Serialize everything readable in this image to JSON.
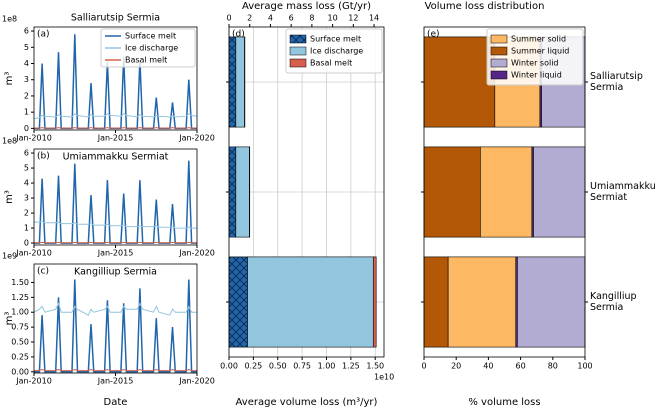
{
  "chart_data": [
    {
      "type": "line",
      "title": "Salliarutsip Sermia",
      "panel_label": "(a)",
      "offset_label": "1e8",
      "ylabel": "m³",
      "x": [
        "2010-01",
        "2010-05",
        "2010-07",
        "2010-09",
        "2011-05",
        "2011-07",
        "2011-09",
        "2012-05",
        "2012-07",
        "2012-09",
        "2013-05",
        "2013-07",
        "2013-09",
        "2014-05",
        "2014-07",
        "2014-09",
        "2015-05",
        "2015-07",
        "2015-09",
        "2016-05",
        "2016-07",
        "2016-09",
        "2017-05",
        "2017-07",
        "2017-09",
        "2018-05",
        "2018-07",
        "2018-09",
        "2019-05",
        "2019-07",
        "2019-09",
        "2020-01"
      ],
      "series": [
        {
          "name": "Surface melt",
          "color": "#2166ac",
          "values": [
            0,
            0,
            4.0,
            0,
            0,
            4.7,
            0,
            0,
            5.8,
            0,
            0,
            2.8,
            0,
            0,
            4.1,
            0,
            0,
            4.4,
            0,
            0,
            4.2,
            0,
            0,
            1.9,
            0,
            0,
            1.6,
            0,
            0,
            3.0,
            0,
            0
          ]
        },
        {
          "name": "Ice discharge",
          "color": "#92c5de",
          "values": [
            0.6,
            0.65,
            0.8,
            0.75,
            0.7,
            0.85,
            0.75,
            0.7,
            0.9,
            0.8,
            0.7,
            0.85,
            0.75,
            0.75,
            0.9,
            0.8,
            0.75,
            0.9,
            0.8,
            0.7,
            0.85,
            0.75,
            0.7,
            0.8,
            0.75,
            0.7,
            0.8,
            0.7,
            0.75,
            0.9,
            0.8,
            0.75
          ]
        },
        {
          "name": "Basal melt",
          "color": "#d6604d",
          "values": [
            0.02,
            0.02,
            0.05,
            0.02,
            0.02,
            0.05,
            0.02,
            0.02,
            0.05,
            0.02,
            0.02,
            0.05,
            0.02,
            0.02,
            0.05,
            0.02,
            0.02,
            0.05,
            0.02,
            0.02,
            0.05,
            0.02,
            0.02,
            0.05,
            0.02,
            0.02,
            0.05,
            0.02,
            0.02,
            0.05,
            0.02,
            0.02
          ]
        }
      ],
      "xlim": [
        "2010-01",
        "2020-01"
      ],
      "xticks": [
        {
          "value": "2010-01",
          "label": "Jan-2010"
        },
        {
          "value": "2015-01",
          "label": "Jan-2015"
        },
        {
          "value": "2020-01",
          "label": "Jan-2020"
        }
      ],
      "ylim": [
        -0.1,
        6.25
      ],
      "yticks": [
        0,
        1,
        2,
        3,
        4,
        5,
        6
      ],
      "legend": "upper right"
    },
    {
      "type": "line",
      "title": "Umiammakku Sermiat",
      "panel_label": "(b)",
      "offset_label": "1e8",
      "ylabel": "m³",
      "x": [
        "2010-01",
        "2010-05",
        "2010-07",
        "2010-09",
        "2011-05",
        "2011-07",
        "2011-09",
        "2012-05",
        "2012-07",
        "2012-09",
        "2013-05",
        "2013-07",
        "2013-09",
        "2014-05",
        "2014-07",
        "2014-09",
        "2015-05",
        "2015-07",
        "2015-09",
        "2016-05",
        "2016-07",
        "2016-09",
        "2017-05",
        "2017-07",
        "2017-09",
        "2018-05",
        "2018-07",
        "2018-09",
        "2019-05",
        "2019-07",
        "2019-09",
        "2020-01"
      ],
      "series": [
        {
          "name": "Surface melt",
          "color": "#2166ac",
          "values": [
            0,
            0,
            4.3,
            0,
            0,
            4.5,
            0,
            0,
            5.3,
            0,
            0,
            3.2,
            0,
            0,
            4.2,
            0,
            0,
            3.3,
            0,
            0,
            4.2,
            0,
            0,
            2.9,
            0,
            0,
            2.6,
            0,
            0,
            5.5,
            0,
            0
          ]
        },
        {
          "name": "Ice discharge",
          "color": "#92c5de",
          "values": [
            1.4,
            1.4,
            1.45,
            1.35,
            1.35,
            1.4,
            1.3,
            1.3,
            1.35,
            1.25,
            1.25,
            1.3,
            1.2,
            1.2,
            1.25,
            1.15,
            1.15,
            1.2,
            1.1,
            1.1,
            1.15,
            1.1,
            1.1,
            1.15,
            1.05,
            1.05,
            1.1,
            1.0,
            1.0,
            1.05,
            1.0,
            1.0
          ]
        },
        {
          "name": "Basal melt",
          "color": "#d6604d",
          "values": [
            0.02,
            0.02,
            0.04,
            0.02,
            0.02,
            0.04,
            0.02,
            0.02,
            0.04,
            0.02,
            0.02,
            0.04,
            0.02,
            0.02,
            0.04,
            0.02,
            0.02,
            0.04,
            0.02,
            0.02,
            0.04,
            0.02,
            0.02,
            0.04,
            0.02,
            0.02,
            0.04,
            0.02,
            0.02,
            0.04,
            0.02,
            0.02
          ]
        }
      ],
      "xlim": [
        "2010-01",
        "2020-01"
      ],
      "xticks": [
        {
          "value": "2010-01",
          "label": "Jan-2010"
        },
        {
          "value": "2015-01",
          "label": "Jan-2015"
        },
        {
          "value": "2020-01",
          "label": "Jan-2020"
        }
      ],
      "ylim": [
        -0.13,
        6.27
      ],
      "yticks": [
        0,
        1,
        2,
        3,
        4,
        5,
        6
      ]
    },
    {
      "type": "line",
      "title": "Kangilliup Sermia",
      "panel_label": "(c)",
      "offset_label": "1e9",
      "ylabel": "m³",
      "xlabel": "Date",
      "x": [
        "2010-01",
        "2010-05",
        "2010-07",
        "2010-09",
        "2011-05",
        "2011-07",
        "2011-09",
        "2012-05",
        "2012-07",
        "2012-09",
        "2013-05",
        "2013-07",
        "2013-09",
        "2014-05",
        "2014-07",
        "2014-09",
        "2015-05",
        "2015-07",
        "2015-09",
        "2016-05",
        "2016-07",
        "2016-09",
        "2017-05",
        "2017-07",
        "2017-09",
        "2018-05",
        "2018-07",
        "2018-09",
        "2019-05",
        "2019-07",
        "2019-09",
        "2020-01"
      ],
      "series": [
        {
          "name": "Surface melt",
          "color": "#2166ac",
          "values": [
            0,
            0,
            0.95,
            0,
            0,
            1.25,
            0,
            0,
            1.55,
            0,
            0,
            0.8,
            0,
            0,
            1.2,
            0,
            0,
            1.15,
            0,
            0,
            1.4,
            0,
            0,
            0.9,
            0,
            0,
            0.75,
            0,
            0,
            1.55,
            0,
            0
          ]
        },
        {
          "name": "Ice discharge",
          "color": "#92c5de",
          "values": [
            1.0,
            1.05,
            1.1,
            1.0,
            1.05,
            1.15,
            1.0,
            1.0,
            1.1,
            1.05,
            0.95,
            1.05,
            1.0,
            1.05,
            1.1,
            1.0,
            1.0,
            1.1,
            1.05,
            1.05,
            1.15,
            1.05,
            1.0,
            1.1,
            1.0,
            0.95,
            1.05,
            1.0,
            1.0,
            1.1,
            1.0,
            1.0
          ]
        },
        {
          "name": "Basal melt",
          "color": "#d6604d",
          "values": [
            0.02,
            0.02,
            0.04,
            0.02,
            0.02,
            0.04,
            0.02,
            0.02,
            0.04,
            0.02,
            0.02,
            0.04,
            0.02,
            0.02,
            0.04,
            0.02,
            0.02,
            0.04,
            0.02,
            0.02,
            0.04,
            0.02,
            0.02,
            0.04,
            0.02,
            0.02,
            0.04,
            0.02,
            0.02,
            0.04,
            0.02,
            0.02
          ]
        }
      ],
      "xlim": [
        "2010-01",
        "2020-01"
      ],
      "xticks": [
        {
          "value": "2010-01",
          "label": "Jan-2010"
        },
        {
          "value": "2015-01",
          "label": "Jan-2015"
        },
        {
          "value": "2020-01",
          "label": "Jan-2020"
        }
      ],
      "ylim": [
        -0.02,
        1.81
      ],
      "yticks": [
        {
          "value": 0,
          "label": "0.00"
        },
        {
          "value": 0.25,
          "label": "0.25"
        },
        {
          "value": 0.5,
          "label": "0.50"
        },
        {
          "value": 0.75,
          "label": "0.75"
        },
        {
          "value": 1.0,
          "label": "1.00"
        },
        {
          "value": 1.25,
          "label": "1.25"
        },
        {
          "value": 1.5,
          "label": "1.50"
        }
      ]
    },
    {
      "type": "barh",
      "panel_label": "(d)",
      "xlabel": "Average volume loss (m³/yr)",
      "offset_label": "1e10",
      "x2label": "Average mass loss (Gt/yr)",
      "series": [
        {
          "name": "Surface melt",
          "color": "#2166ac",
          "hatch": "x",
          "values": [
            0.07,
            0.07,
            0.19
          ]
        },
        {
          "name": "Ice discharge",
          "color": "#92c5de",
          "values": [
            0.09,
            0.14,
            1.29
          ]
        },
        {
          "name": "Basal melt",
          "color": "#d6604d",
          "values": [
            0.003,
            0.003,
            0.03
          ]
        }
      ],
      "xlim": [
        0,
        1.59
      ],
      "xticks": [
        {
          "value": 0,
          "label": "0.00"
        },
        {
          "value": 0.25,
          "label": "0.25"
        },
        {
          "value": 0.5,
          "label": "0.50"
        },
        {
          "value": 0.75,
          "label": "0.75"
        },
        {
          "value": 1.0,
          "label": "1.00"
        },
        {
          "value": 1.25,
          "label": "1.25"
        },
        {
          "value": 1.5,
          "label": "1.50"
        }
      ],
      "x2lim": [
        0,
        14.96
      ],
      "x2ticks": [
        0,
        2,
        4,
        6,
        8,
        10,
        12,
        14
      ],
      "grid": true,
      "legend": "upper right"
    },
    {
      "type": "barh",
      "title": "Volume loss distribution",
      "panel_label": "(e)",
      "xlabel": "% volume loss",
      "categories": [
        "Salliarutsip Sermia",
        "Umiammakku Sermiat",
        "Kangilliup Sermia"
      ],
      "series": [
        {
          "name": "Summer solid",
          "color": "#fdb863",
          "values": [
            28,
            32,
            42
          ]
        },
        {
          "name": "Summer liquid",
          "color": "#b35806",
          "values": [
            44,
            35,
            15
          ]
        },
        {
          "name": "Winter solid",
          "color": "#b2abd2",
          "values": [
            27,
            32,
            42
          ]
        },
        {
          "name": "Winter liquid",
          "color": "#542788",
          "values": [
            1,
            1,
            1
          ]
        }
      ],
      "xlim": [
        0,
        100
      ],
      "xticks": [
        0,
        20,
        40,
        60,
        80,
        100
      ],
      "legend": "upper right"
    }
  ]
}
